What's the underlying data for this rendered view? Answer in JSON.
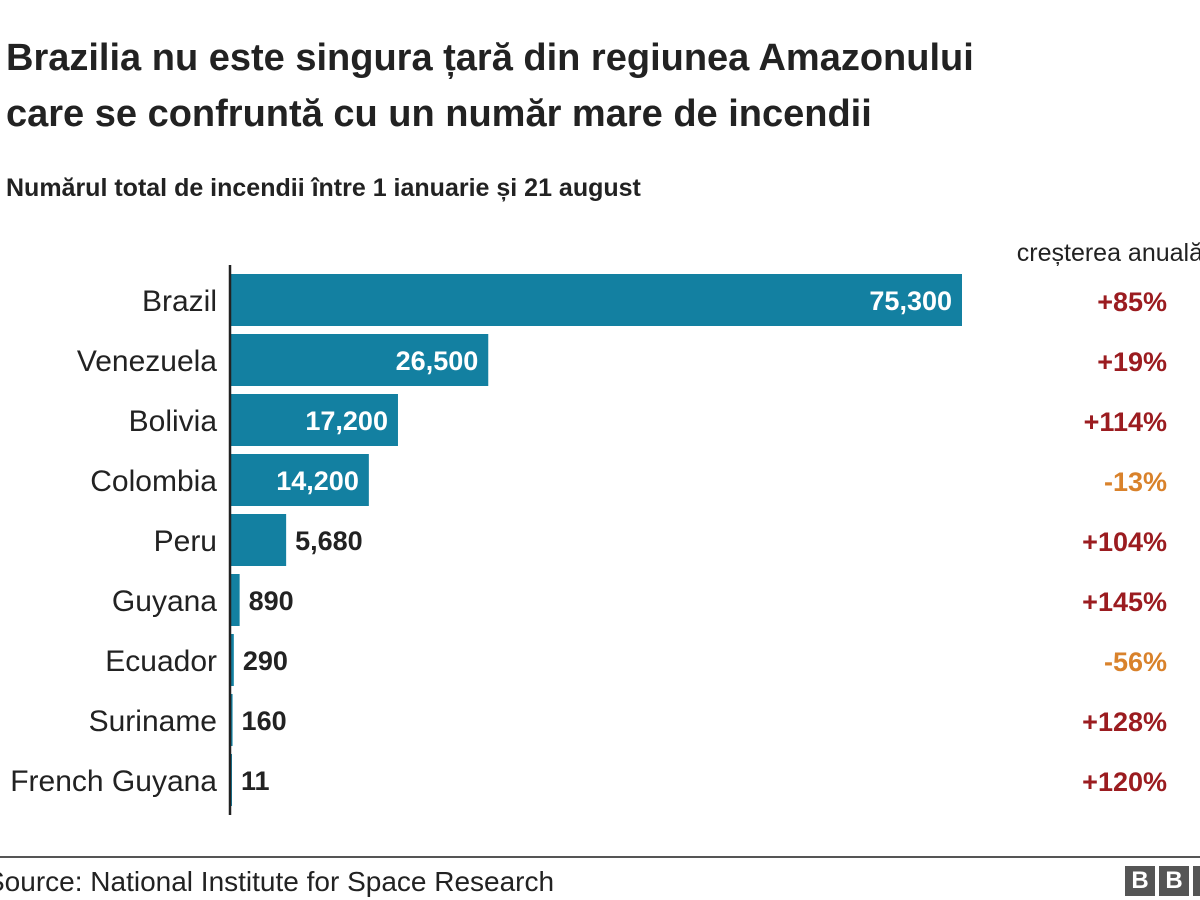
{
  "chart_data": {
    "type": "bar",
    "orientation": "horizontal",
    "title": "Brazilia nu este singura țară din regiunea Amazonului care se confruntă cu un număr mare de incendii",
    "title_lines": [
      "Brazilia nu este singura țară din regiunea Amazonului",
      "care se confruntă cu un număr mare de incendii"
    ],
    "subtitle": "Numărul total de incendii între 1 ianuarie și 21 august",
    "change_header": "creșterea anuală",
    "categories": [
      "Brazil",
      "Venezuela",
      "Bolivia",
      "Colombia",
      "Peru",
      "Guyana",
      "Ecuador",
      "Suriname",
      "French Guyana"
    ],
    "values": [
      75300,
      26500,
      17200,
      14200,
      5680,
      890,
      290,
      160,
      11
    ],
    "value_labels": [
      "75,300",
      "26,500",
      "17,200",
      "14,200",
      "5,680",
      "890",
      "290",
      "160",
      "11"
    ],
    "annual_change": [
      "+85%",
      "+19%",
      "+114%",
      "-13%",
      "+104%",
      "+145%",
      "-56%",
      "+128%",
      "+120%"
    ],
    "xlim": [
      0,
      75300
    ],
    "grid": false,
    "source": "Source: National Institute for Space Research",
    "logo": "BBC",
    "colors": {
      "bar": "#1380a1",
      "increase": "#9b1c20",
      "decrease": "#d9822b"
    }
  }
}
